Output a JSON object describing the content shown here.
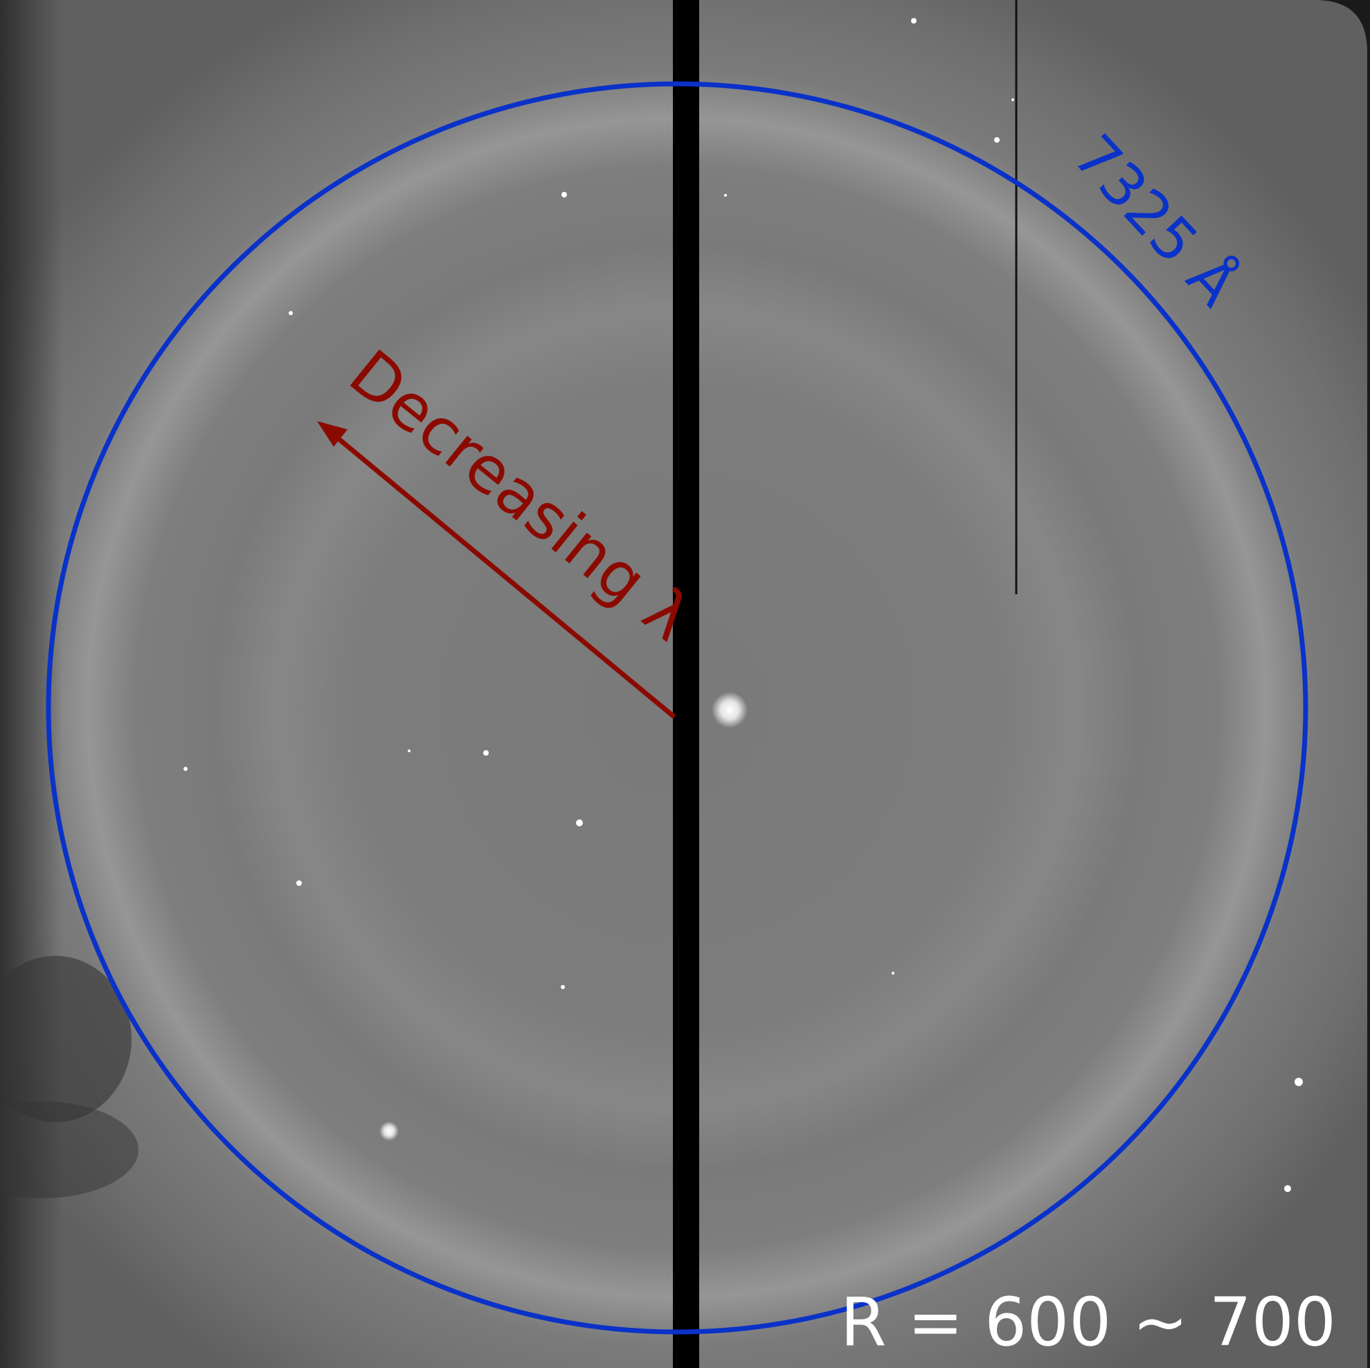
{
  "annotations": {
    "ring_label": "7325 Å",
    "arrow_label": "Decreasing λ",
    "resolution": "R = 600 ~ 700"
  }
}
